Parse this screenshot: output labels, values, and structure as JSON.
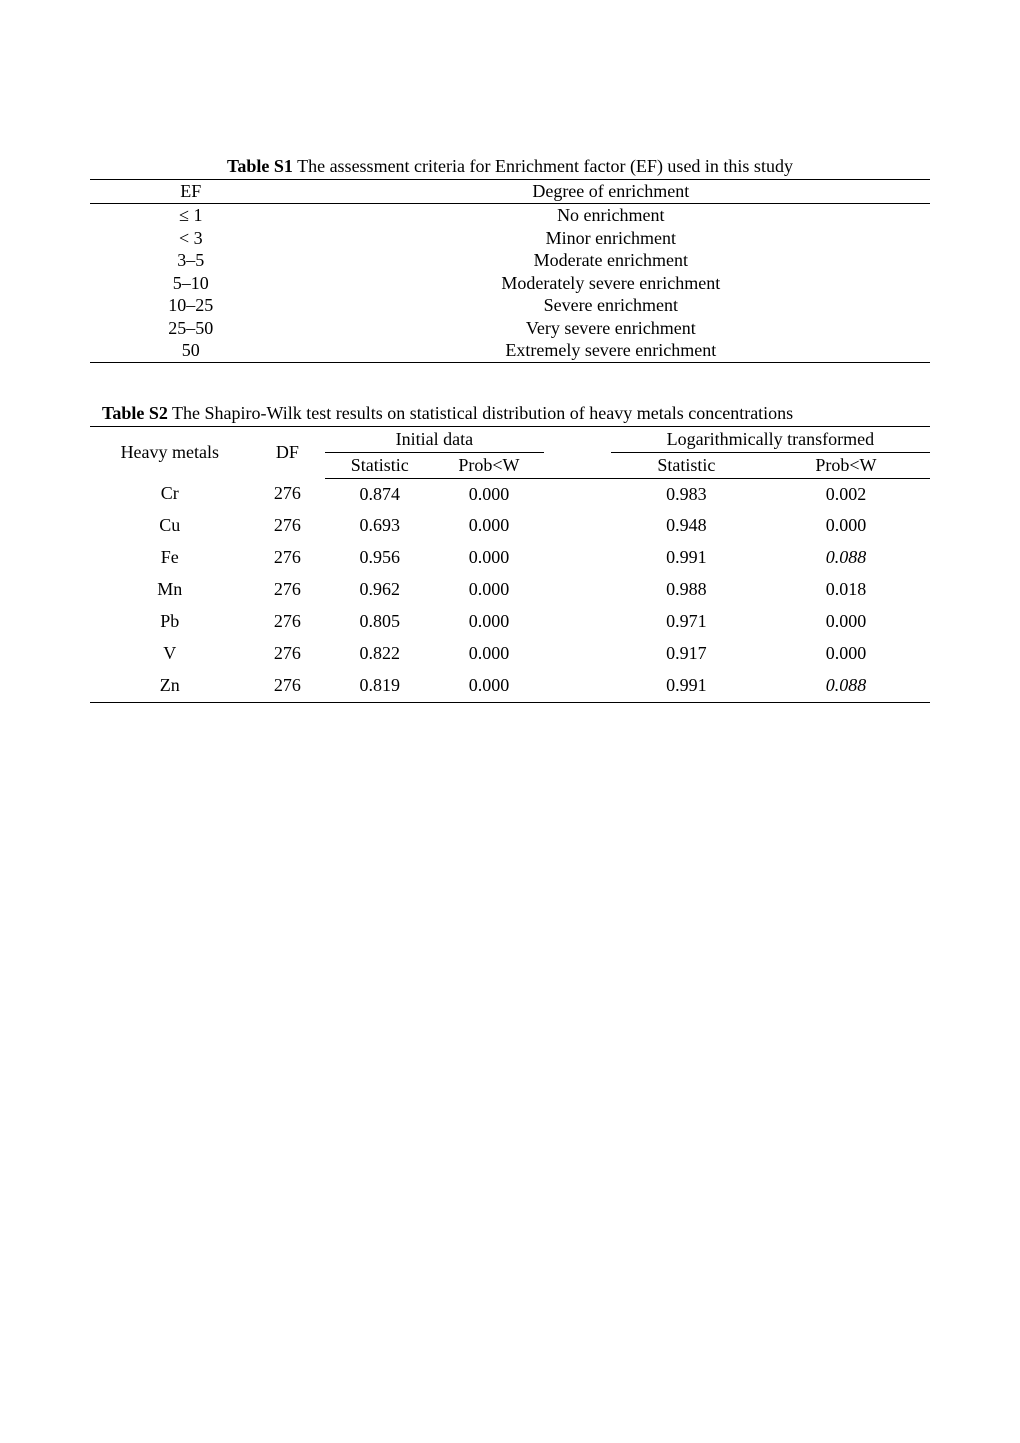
{
  "tableS1": {
    "caption_bold": "Table S1",
    "caption_rest": " The assessment criteria for Enrichment factor (EF) used in this study",
    "header": {
      "ef": "EF",
      "degree": "Degree of enrichment"
    },
    "rows": [
      {
        "ef": "≤ 1",
        "degree": "No enrichment"
      },
      {
        "ef": "< 3",
        "degree": "Minor enrichment"
      },
      {
        "ef": "3–5",
        "degree": "Moderate enrichment"
      },
      {
        "ef": "5–10",
        "degree": "Moderately severe enrichment"
      },
      {
        "ef": "10–25",
        "degree": "Severe enrichment"
      },
      {
        "ef": "25–50",
        "degree": "Very severe enrichment"
      },
      {
        "ef": "50",
        "degree": "Extremely severe enrichment"
      }
    ]
  },
  "tableS2": {
    "caption_bold": "Table S2",
    "caption_rest": " The Shapiro-Wilk test results on statistical distribution of heavy metals concentrations",
    "header": {
      "heavy_metals": "Heavy metals",
      "df": "DF",
      "initial": "Initial data",
      "log": "Logarithmically transformed",
      "statistic": "Statistic",
      "probw": "Prob<W"
    },
    "rows": [
      {
        "hm": "Cr",
        "df": "276",
        "stat1": "0.874",
        "p1": "0.000",
        "stat2": "0.983",
        "p2": "0.002",
        "p2_italic": false
      },
      {
        "hm": "Cu",
        "df": "276",
        "stat1": "0.693",
        "p1": "0.000",
        "stat2": "0.948",
        "p2": "0.000",
        "p2_italic": false
      },
      {
        "hm": "Fe",
        "df": "276",
        "stat1": "0.956",
        "p1": "0.000",
        "stat2": "0.991",
        "p2": "0.088",
        "p2_italic": true
      },
      {
        "hm": "Mn",
        "df": "276",
        "stat1": "0.962",
        "p1": "0.000",
        "stat2": "0.988",
        "p2": "0.018",
        "p2_italic": false
      },
      {
        "hm": "Pb",
        "df": "276",
        "stat1": "0.805",
        "p1": "0.000",
        "stat2": "0.971",
        "p2": "0.000",
        "p2_italic": false
      },
      {
        "hm": "V",
        "df": "276",
        "stat1": "0.822",
        "p1": "0.000",
        "stat2": "0.917",
        "p2": "0.000",
        "p2_italic": false
      },
      {
        "hm": "Zn",
        "df": "276",
        "stat1": "0.819",
        "p1": "0.000",
        "stat2": "0.991",
        "p2": "0.088",
        "p2_italic": true
      }
    ]
  }
}
